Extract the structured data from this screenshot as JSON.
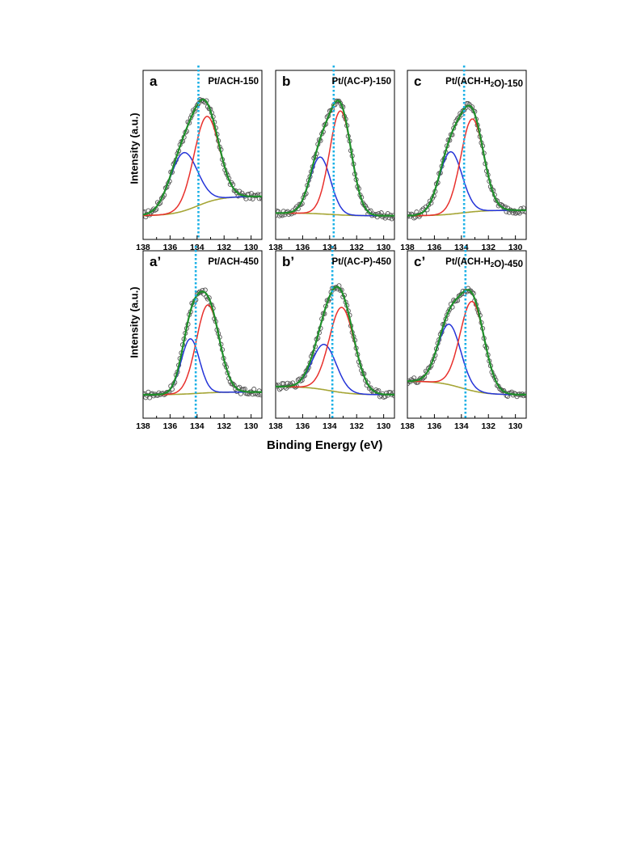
{
  "figure": {
    "ylabel": "Intensity (a.u.)",
    "xlabel": "Binding Energy (eV)",
    "x_ticks": [
      138,
      136,
      134,
      132,
      130
    ]
  },
  "colors": {
    "data": "#555555",
    "fit": "#1e8f2a",
    "low_component": "#e8302c",
    "high_component": "#2434d8",
    "background": "#a5a535",
    "reference_line": "#1ab0e6"
  },
  "chart_data": [
    {
      "type": "line",
      "letter": "a",
      "sample": "Pt/ACH-150",
      "xlim": [
        138,
        129.2
      ],
      "x_reversed": true,
      "reference_line_x": 133.9,
      "components": [
        {
          "color": "red",
          "center_eV": 133.3,
          "fwhm_eV": 2.2,
          "height": 0.62
        },
        {
          "color": "blue",
          "center_eV": 135.0,
          "fwhm_eV": 2.4,
          "height": 0.42
        }
      ],
      "background": {
        "left_level": 0.0,
        "right_level": 0.14
      }
    },
    {
      "type": "line",
      "letter": "b",
      "sample": "Pt/(AC-P)-150",
      "xlim": [
        138,
        129.2
      ],
      "x_reversed": true,
      "reference_line_x": 133.7,
      "components": [
        {
          "color": "red",
          "center_eV": 133.2,
          "fwhm_eV": 1.9,
          "height": 0.75
        },
        {
          "color": "blue",
          "center_eV": 134.7,
          "fwhm_eV": 1.8,
          "height": 0.41
        }
      ],
      "background": {
        "left_level": 0.02,
        "right_level": 0.0
      }
    },
    {
      "type": "line",
      "letter": "c",
      "sample": "Pt/(ACH-H₂O)-150",
      "xlim": [
        138,
        129.2
      ],
      "x_reversed": true,
      "reference_line_x": 133.8,
      "components": [
        {
          "color": "red",
          "center_eV": 133.2,
          "fwhm_eV": 2.0,
          "height": 0.67
        },
        {
          "color": "blue",
          "center_eV": 134.8,
          "fwhm_eV": 2.0,
          "height": 0.45
        }
      ],
      "background": {
        "left_level": 0.0,
        "right_level": 0.04
      }
    },
    {
      "type": "line",
      "letter": "a’",
      "sample": "Pt/ACH-450",
      "xlim": [
        138,
        129.2
      ],
      "x_reversed": true,
      "reference_line_x": 134.1,
      "components": [
        {
          "color": "red",
          "center_eV": 133.2,
          "fwhm_eV": 2.0,
          "height": 0.64
        },
        {
          "color": "blue",
          "center_eV": 134.5,
          "fwhm_eV": 1.6,
          "height": 0.4
        }
      ],
      "background": {
        "left_level": 0.0,
        "right_level": 0.02
      }
    },
    {
      "type": "line",
      "letter": "b’",
      "sample": "Pt/(AC-P)-450",
      "xlim": [
        138,
        129.2
      ],
      "x_reversed": true,
      "reference_line_x": 133.8,
      "components": [
        {
          "color": "red",
          "center_eV": 133.1,
          "fwhm_eV": 2.2,
          "height": 0.62
        },
        {
          "color": "blue",
          "center_eV": 134.4,
          "fwhm_eV": 2.1,
          "height": 0.33
        }
      ],
      "background": {
        "left_level": 0.06,
        "right_level": 0.0
      }
    },
    {
      "type": "line",
      "letter": "c’",
      "sample": "Pt/(ACH-H₂O)-450",
      "xlim": [
        138,
        129.2
      ],
      "x_reversed": true,
      "reference_line_x": 133.7,
      "components": [
        {
          "color": "red",
          "center_eV": 133.2,
          "fwhm_eV": 2.1,
          "height": 0.65
        },
        {
          "color": "blue",
          "center_eV": 134.9,
          "fwhm_eV": 2.0,
          "height": 0.44
        }
      ],
      "background": {
        "left_level": 0.1,
        "right_level": 0.0
      }
    }
  ]
}
